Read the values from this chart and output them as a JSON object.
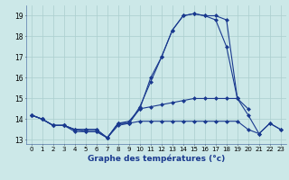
{
  "xlabel": "Graphe des températures (°c)",
  "hours": [
    0,
    1,
    2,
    3,
    4,
    5,
    6,
    7,
    8,
    9,
    10,
    11,
    12,
    13,
    14,
    15,
    16,
    17,
    18,
    19,
    20,
    21,
    22,
    23
  ],
  "series": [
    [
      14.2,
      14.0,
      13.7,
      13.7,
      13.5,
      13.5,
      13.5,
      13.1,
      13.8,
      13.8,
      14.6,
      15.8,
      17.0,
      18.3,
      19.0,
      19.1,
      19.0,
      19.0,
      18.8,
      15.0,
      14.2,
      13.3,
      13.8,
      13.5
    ],
    [
      14.2,
      14.0,
      13.7,
      13.7,
      13.5,
      13.5,
      13.5,
      13.1,
      13.8,
      13.9,
      14.5,
      16.0,
      17.0,
      18.3,
      19.0,
      19.1,
      19.0,
      18.8,
      17.5,
      15.0,
      null,
      null,
      null,
      null
    ],
    [
      14.2,
      14.0,
      13.7,
      13.7,
      13.5,
      13.4,
      13.4,
      13.1,
      13.8,
      13.8,
      14.5,
      14.6,
      14.7,
      14.8,
      14.9,
      15.0,
      15.0,
      15.0,
      15.0,
      15.0,
      14.5,
      null,
      null,
      null
    ],
    [
      14.2,
      14.0,
      13.7,
      13.7,
      13.4,
      13.4,
      13.4,
      13.1,
      13.7,
      13.8,
      13.9,
      13.9,
      13.9,
      13.9,
      13.9,
      13.9,
      13.9,
      13.9,
      13.9,
      13.9,
      13.5,
      13.3,
      13.8,
      13.5
    ]
  ],
  "line_color": "#1a3a8f",
  "marker": "D",
  "markersize": 2,
  "bg_color": "#cce8e8",
  "grid_color": "#aacece",
  "ylim": [
    12.8,
    19.5
  ],
  "yticks": [
    13,
    14,
    15,
    16,
    17,
    18,
    19
  ],
  "xlim": [
    -0.5,
    23.5
  ],
  "xticks": [
    0,
    1,
    2,
    3,
    4,
    5,
    6,
    7,
    8,
    9,
    10,
    11,
    12,
    13,
    14,
    15,
    16,
    17,
    18,
    19,
    20,
    21,
    22,
    23
  ]
}
